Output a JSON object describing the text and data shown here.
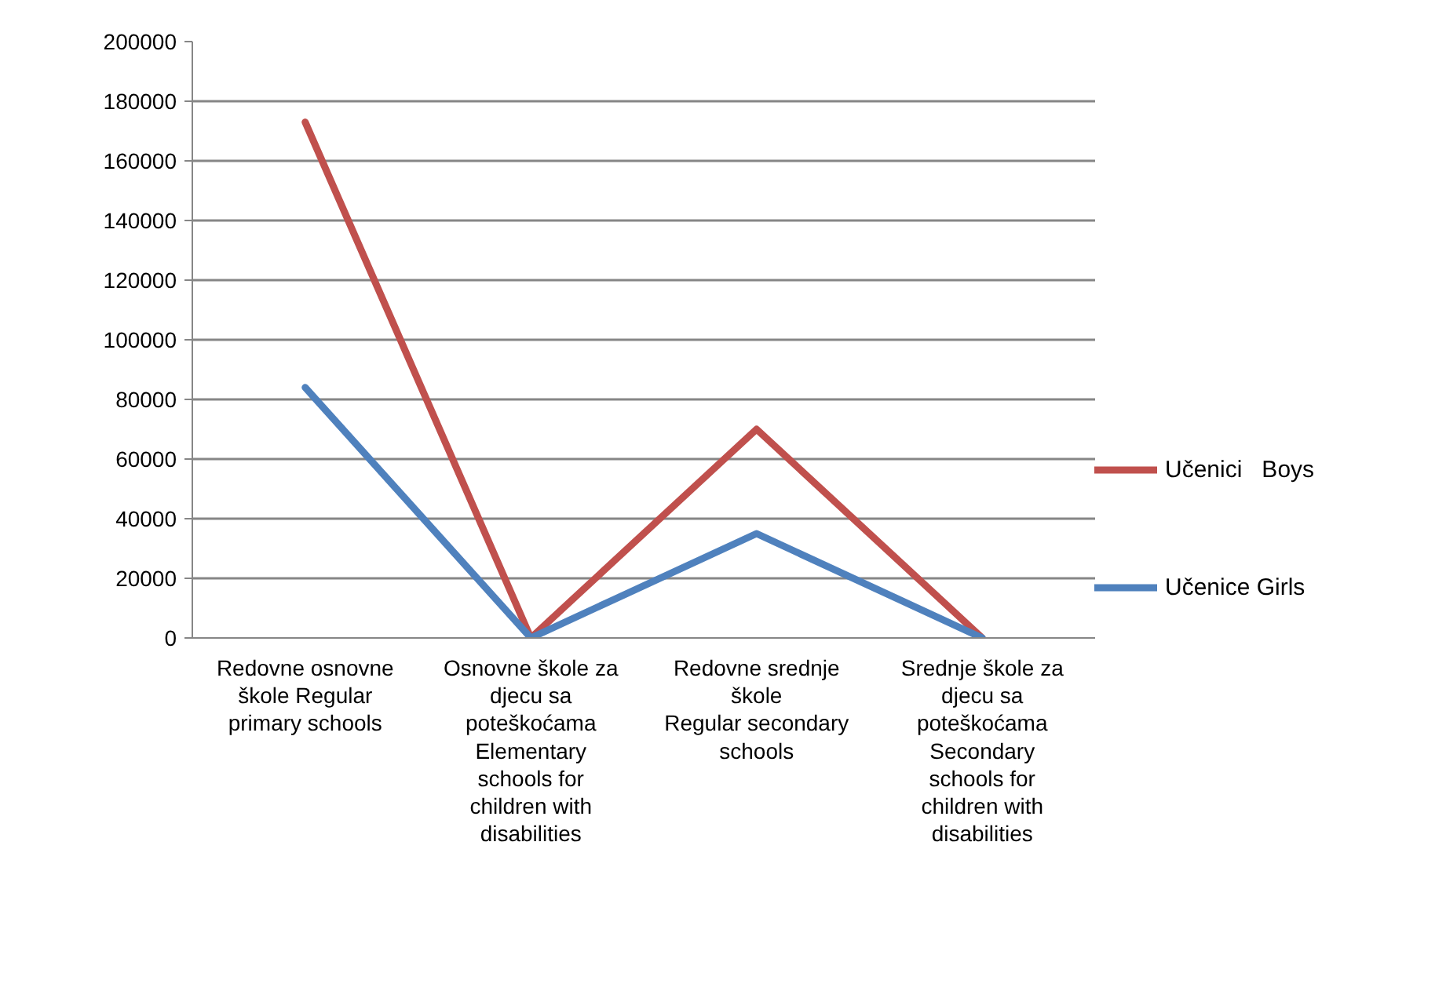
{
  "chart_data": {
    "type": "line",
    "categories": [
      "Redovne osnovne\nškole Regular\nprimary schools",
      "Osnovne škole za\ndjecu sa\npoteškoćama\nElementary\nschools for\nchildren with\ndisabilities",
      "Redovne srednje\nškole\nRegular secondary\nschools",
      "Srednje škole za\ndjecu sa\npoteškoćama\nSecondary\nschools for\nchildren with\ndisabilities"
    ],
    "series": [
      {
        "name": "Učenici   Boys",
        "color": "#c0504d",
        "values": [
          173000,
          0,
          70000,
          0
        ]
      },
      {
        "name": "Učenice Girls",
        "color": "#4f81bd",
        "values": [
          84000,
          0,
          35000,
          0
        ]
      }
    ],
    "ylim": [
      0,
      200000
    ],
    "yticks": [
      0,
      20000,
      40000,
      60000,
      80000,
      100000,
      120000,
      140000,
      160000,
      180000,
      200000
    ],
    "grid": "y",
    "legend": "right"
  }
}
